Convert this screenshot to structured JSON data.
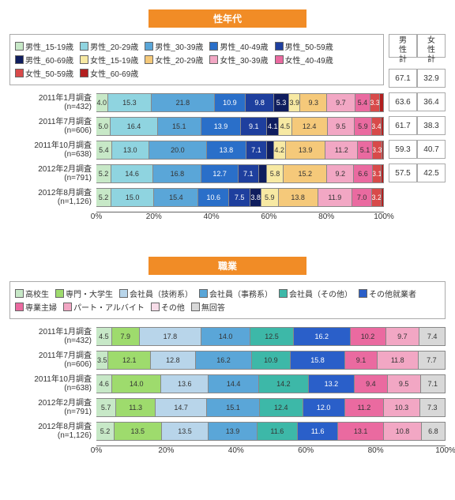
{
  "chart1": {
    "title": "性年代",
    "legend": [
      {
        "label": "男性_15-19歳",
        "color": "#c7e8c7"
      },
      {
        "label": "男性_20-29歳",
        "color": "#8fd4e0"
      },
      {
        "label": "男性_30-39歳",
        "color": "#5aa6d8"
      },
      {
        "label": "男性_40-49歳",
        "color": "#2a6fc9"
      },
      {
        "label": "男性_50-59歳",
        "color": "#1e3f9e"
      },
      {
        "label": "男性_60-69歳",
        "color": "#0f1d5e"
      },
      {
        "label": "女性_15-19歳",
        "color": "#f7e9a3"
      },
      {
        "label": "女性_20-29歳",
        "color": "#f5c97a"
      },
      {
        "label": "女性_30-39歳",
        "color": "#f2a7c4"
      },
      {
        "label": "女性_40-49歳",
        "color": "#ea6aa0"
      },
      {
        "label": "女性_50-59歳",
        "color": "#d84a4a"
      },
      {
        "label": "女性_60-69歳",
        "color": "#b21f1f"
      }
    ],
    "side_headers": [
      "男\n性\n計",
      "女\n性\n計"
    ],
    "rows": [
      {
        "label": "2011年1月調査",
        "n": "(n=432)",
        "v": [
          4.0,
          15.3,
          21.8,
          10.9,
          9.8,
          5.3,
          3.9,
          9.3,
          9.7,
          5.4,
          3.3,
          1.3
        ],
        "side": [
          67.1,
          32.9
        ]
      },
      {
        "label": "2011年7月調査",
        "n": "(n=606)",
        "v": [
          5.0,
          16.4,
          15.1,
          13.9,
          9.1,
          4.1,
          4.5,
          12.4,
          9.5,
          5.9,
          3.4,
          0.8
        ],
        "side": [
          63.6,
          36.4
        ]
      },
      {
        "label": "2011年10月調査",
        "n": "(n=638)",
        "v": [
          5.4,
          13.0,
          20.0,
          13.8,
          7.1,
          2.4,
          4.2,
          13.9,
          11.2,
          5.1,
          3.3,
          0.6
        ],
        "side": [
          61.7,
          38.3
        ]
      },
      {
        "label": "2012年2月調査",
        "n": "(n=791)",
        "v": [
          5.2,
          14.6,
          16.8,
          12.7,
          7.1,
          2.8,
          5.8,
          15.2,
          9.2,
          6.6,
          3.1,
          0.7
        ],
        "side": [
          59.3,
          40.7
        ]
      },
      {
        "label": "2012年8月調査",
        "n": "(n=1,126)",
        "v": [
          5.2,
          15.0,
          15.4,
          10.6,
          7.5,
          3.8,
          5.9,
          13.8,
          11.9,
          7.0,
          3.2,
          0.8
        ],
        "side": [
          57.5,
          42.5
        ]
      }
    ],
    "ticks": [
      0,
      20,
      40,
      60,
      80,
      100
    ]
  },
  "chart2": {
    "title": "職業",
    "legend": [
      {
        "label": "高校生",
        "color": "#c7e8c7"
      },
      {
        "label": "専門・大学生",
        "color": "#9edb6d"
      },
      {
        "label": "会社員（技術系）",
        "color": "#b8d5ea"
      },
      {
        "label": "会社員（事務系）",
        "color": "#5aa6d8"
      },
      {
        "label": "会社員（その他）",
        "color": "#3db8a8"
      },
      {
        "label": "その他就業者",
        "color": "#2a5fc9"
      },
      {
        "label": "専業主婦",
        "color": "#ea6aa0"
      },
      {
        "label": "パート・アルバイト",
        "color": "#f2a7c4"
      },
      {
        "label": "その他",
        "color": "#f7dce8"
      },
      {
        "label": "無回答",
        "color": "#d8d8d8"
      }
    ],
    "rows": [
      {
        "label": "2011年1月調査",
        "n": "(n=432)",
        "v": [
          4.5,
          7.9,
          17.8,
          14.0,
          12.5,
          16.2,
          10.2,
          9.7,
          7.4
        ]
      },
      {
        "label": "2011年7月調査",
        "n": "(n=606)",
        "v": [
          3.5,
          12.1,
          12.8,
          16.2,
          10.9,
          15.8,
          9.1,
          11.8,
          7.7
        ]
      },
      {
        "label": "2011年10月調査",
        "n": "(n=638)",
        "v": [
          4.6,
          14.0,
          13.6,
          14.4,
          14.2,
          13.2,
          9.4,
          9.5,
          7.1
        ]
      },
      {
        "label": "2012年2月調査",
        "n": "(n=791)",
        "v": [
          5.7,
          11.3,
          14.7,
          15.1,
          12.4,
          12.0,
          11.2,
          10.3,
          7.3
        ]
      },
      {
        "label": "2012年8月調査",
        "n": "(n=1,126)",
        "v": [
          5.2,
          13.5,
          13.5,
          13.9,
          11.6,
          11.6,
          13.1,
          10.8,
          6.8
        ]
      }
    ],
    "colors_idx": [
      0,
      1,
      2,
      3,
      4,
      5,
      6,
      7,
      9
    ],
    "ticks": [
      0,
      20,
      40,
      60,
      80,
      100
    ]
  }
}
